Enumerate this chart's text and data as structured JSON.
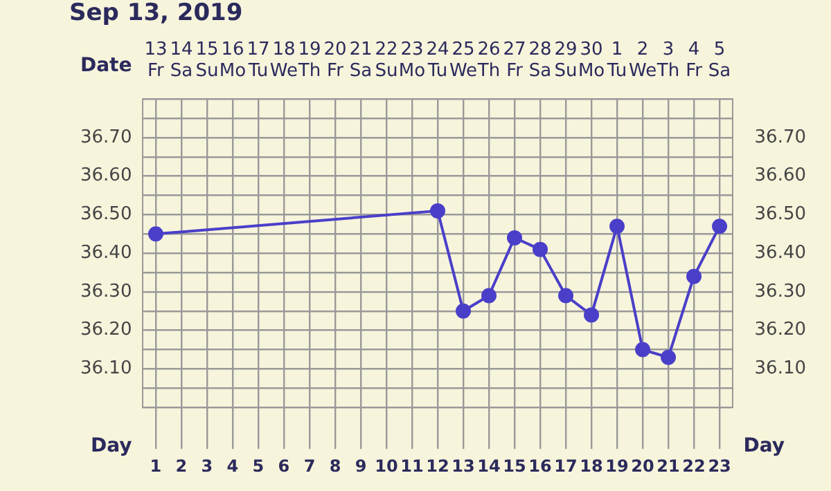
{
  "chart_data": {
    "type": "line",
    "title": "Sep 13, 2019",
    "xlabel": "Day",
    "x2label": "Date",
    "x": [
      1,
      2,
      3,
      4,
      5,
      6,
      7,
      8,
      9,
      10,
      11,
      12,
      13,
      14,
      15,
      16,
      17,
      18,
      19,
      20,
      21,
      22,
      23
    ],
    "series": [
      {
        "color": "#4a3fc8",
        "values": [
          36.45,
          null,
          null,
          null,
          null,
          null,
          null,
          null,
          null,
          null,
          null,
          36.51,
          36.25,
          36.29,
          36.44,
          36.41,
          36.29,
          36.24,
          36.47,
          36.15,
          36.13,
          36.34,
          36.47
        ]
      }
    ],
    "xlim": [
      0.5,
      23.5
    ],
    "xticks": [
      1,
      2,
      3,
      4,
      5,
      6,
      7,
      8,
      9,
      10,
      11,
      12,
      13,
      14,
      15,
      16,
      17,
      18,
      19,
      20,
      21,
      22,
      23
    ],
    "x2lim": [
      "2019-09-12T12:00",
      "2019-10-05T12:00"
    ],
    "x2ticks": [
      {
        "value": "2019-09-13",
        "label": "13 Fr"
      },
      {
        "value": "2019-09-14",
        "label": "14 Sa"
      },
      {
        "value": "2019-09-15",
        "label": "15 Su"
      },
      {
        "value": "2019-09-16",
        "label": "16 Mo"
      },
      {
        "value": "2019-09-17",
        "label": "17 Tu"
      },
      {
        "value": "2019-09-18",
        "label": "18 We"
      },
      {
        "value": "2019-09-19",
        "label": "19 Th"
      },
      {
        "value": "2019-09-20",
        "label": "20 Fr"
      },
      {
        "value": "2019-09-21",
        "label": "21 Sa"
      },
      {
        "value": "2019-09-22",
        "label": "22 Su"
      },
      {
        "value": "2019-09-23",
        "label": "23 Mo"
      },
      {
        "value": "2019-09-24",
        "label": "24 Tu"
      },
      {
        "value": "2019-09-25",
        "label": "25 We"
      },
      {
        "value": "2019-09-26",
        "label": "26 Th"
      },
      {
        "value": "2019-09-27",
        "label": "27 Fr"
      },
      {
        "value": "2019-09-28",
        "label": "28 Sa"
      },
      {
        "value": "2019-09-29",
        "label": "29 Su"
      },
      {
        "value": "2019-09-30",
        "label": "30 Mo"
      },
      {
        "value": "2019-10-01",
        "label": "1 Tu"
      },
      {
        "value": "2019-10-02",
        "label": "2 We"
      },
      {
        "value": "2019-10-03",
        "label": "3 Th"
      },
      {
        "value": "2019-10-04",
        "label": "4 Fr"
      },
      {
        "value": "2019-10-05",
        "label": "5 Sa"
      }
    ],
    "ylim": [
      36.0,
      36.8
    ],
    "yticks": [
      {
        "value": 36.0,
        "label": null
      },
      {
        "value": 36.05,
        "label": null
      },
      {
        "value": 36.1,
        "label": "36.10"
      },
      {
        "value": 36.15,
        "label": null
      },
      {
        "value": 36.2,
        "label": "36.20"
      },
      {
        "value": 36.25,
        "label": null
      },
      {
        "value": 36.3,
        "label": "36.30"
      },
      {
        "value": 36.35,
        "label": null
      },
      {
        "value": 36.4,
        "label": "36.40"
      },
      {
        "value": 36.45,
        "label": null
      },
      {
        "value": 36.5,
        "label": "36.50"
      },
      {
        "value": 36.55,
        "label": null
      },
      {
        "value": 36.6,
        "label": "36.60"
      },
      {
        "value": 36.65,
        "label": null
      },
      {
        "value": 36.7,
        "label": "36.70"
      },
      {
        "value": 36.75,
        "label": null
      },
      {
        "value": 36.8,
        "label": null
      }
    ],
    "y2lim": [
      36.0,
      36.8
    ],
    "y2ticks": [
      {
        "value": 36.0,
        "label": null
      },
      {
        "value": 36.05,
        "label": null
      },
      {
        "value": 36.1,
        "label": "36.10"
      },
      {
        "value": 36.15,
        "label": null
      },
      {
        "value": 36.2,
        "label": "36.20"
      },
      {
        "value": 36.25,
        "label": null
      },
      {
        "value": 36.3,
        "label": "36.30"
      },
      {
        "value": 36.35,
        "label": null
      },
      {
        "value": 36.4,
        "label": "36.40"
      },
      {
        "value": 36.45,
        "label": null
      },
      {
        "value": 36.5,
        "label": "36.50"
      },
      {
        "value": 36.55,
        "label": null
      },
      {
        "value": 36.6,
        "label": "36.60"
      },
      {
        "value": 36.65,
        "label": null
      },
      {
        "value": 36.7,
        "label": "36.70"
      },
      {
        "value": 36.75,
        "label": null
      },
      {
        "value": 36.8,
        "label": null
      }
    ],
    "grid": true,
    "marker": "circle",
    "legend": false
  }
}
